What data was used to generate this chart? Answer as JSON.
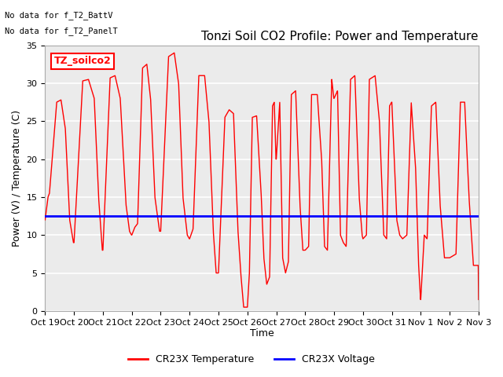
{
  "title": "Tonzi Soil CO2 Profile: Power and Temperature",
  "ylabel": "Power (V) / Temperature (C)",
  "xlabel": "Time",
  "no_data_text1": "No data for f_T2_BattV",
  "no_data_text2": "No data for f_T2_PanelT",
  "legend_box_label": "TZ_soilco2",
  "ylim": [
    0,
    35
  ],
  "yticks": [
    0,
    5,
    10,
    15,
    20,
    25,
    30,
    35
  ],
  "xtick_labels": [
    "Oct 19",
    "Oct 20",
    "Oct 21",
    "Oct 22",
    "Oct 23",
    "Oct 24",
    "Oct 25",
    "Oct 26",
    "Oct 27",
    "Oct 28",
    "Oct 29",
    "Oct 30",
    "Oct 31",
    "Nov 1",
    "Nov 2",
    "Nov 3"
  ],
  "voltage_value": 12.5,
  "temp_color": "#ff0000",
  "voltage_color": "#0000ff",
  "plot_bg_color": "#ebebeb",
  "legend1_label": "CR23X Temperature",
  "legend2_label": "CR23X Voltage",
  "title_fontsize": 11,
  "label_fontsize": 9,
  "tick_fontsize": 8
}
